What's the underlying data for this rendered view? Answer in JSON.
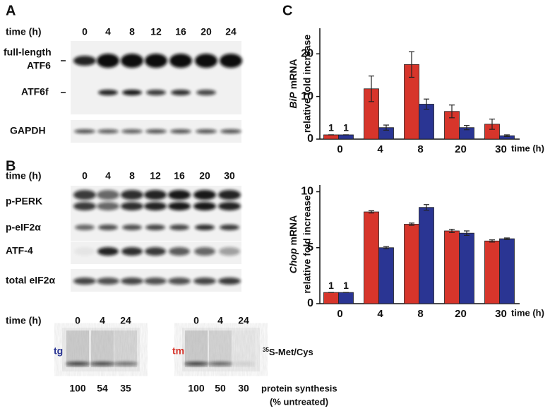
{
  "panel_a": {
    "label": "A",
    "time_label": "time (h)",
    "times": [
      0,
      4,
      8,
      12,
      16,
      20,
      24
    ],
    "full_length": [
      "full-length",
      "ATF6"
    ],
    "fragment": "ATF6f",
    "loading": "GAPDH"
  },
  "panel_b": {
    "label": "B",
    "time_label": "time (h)",
    "times": [
      0,
      4,
      8,
      12,
      16,
      20,
      30
    ],
    "rows": [
      "p-PERK",
      "p-eIF2α",
      "ATF-4",
      "total eIF2α"
    ],
    "synthesis": {
      "time_label": "time (h)",
      "times_tg": [
        0,
        4,
        24
      ],
      "times_tm": [
        0,
        4,
        24
      ],
      "tg": "tg",
      "tm": "tm",
      "isotope": "35",
      "probe": "S-Met/Cys",
      "values_tg": [
        100,
        54,
        35
      ],
      "values_tm": [
        100,
        50,
        30
      ],
      "caption": [
        "protein synthesis",
        "(% untreated)"
      ]
    }
  },
  "panel_c": {
    "label": "C"
  },
  "chart_data": [
    {
      "type": "bar",
      "gene": "BiP",
      "ylabel": "mRNA",
      "ylabel2": "relative fold increase",
      "xlabel": "time (h)",
      "categories": [
        0,
        4,
        8,
        20,
        30
      ],
      "series": [
        {
          "color": "#d7352b",
          "values": [
            1,
            11.8,
            17.5,
            6.5,
            3.5
          ],
          "errors": [
            0,
            3,
            3,
            1.5,
            1.2
          ]
        },
        {
          "color": "#2a3593",
          "values": [
            1,
            2.7,
            8.2,
            2.7,
            0.8
          ],
          "errors": [
            0,
            0.6,
            1.2,
            0.5,
            0.2
          ]
        }
      ],
      "ylim": [
        0,
        26
      ],
      "yticks": [
        0,
        10,
        20
      ]
    },
    {
      "type": "bar",
      "gene": "Chop",
      "ylabel": "mRNA",
      "ylabel2": "relative fold increase",
      "xlabel": "time (h)",
      "categories": [
        0,
        4,
        8,
        20,
        30
      ],
      "series": [
        {
          "color": "#d7352b",
          "values": [
            1,
            8.2,
            7.1,
            6.5,
            5.6
          ],
          "errors": [
            0,
            0.1,
            0.1,
            0.15,
            0.1
          ]
        },
        {
          "color": "#2a3593",
          "values": [
            1,
            5.0,
            8.6,
            6.3,
            5.8
          ],
          "errors": [
            0,
            0.1,
            0.25,
            0.2,
            0.07
          ]
        }
      ],
      "ylim": [
        0,
        10.6
      ],
      "yticks": [
        0,
        5,
        10
      ]
    }
  ]
}
